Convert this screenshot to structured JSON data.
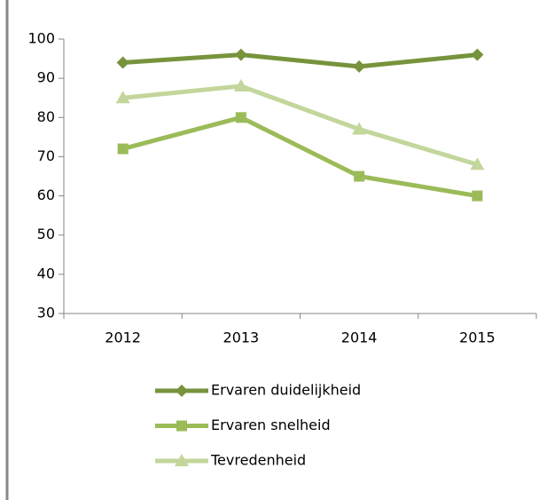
{
  "chart_data": {
    "type": "line",
    "categories": [
      "2012",
      "2013",
      "2014",
      "2015"
    ],
    "series": [
      {
        "name": "Ervaren duidelijkheid",
        "color": "#77933c",
        "marker": "diamond",
        "values": [
          94,
          96,
          93,
          96
        ]
      },
      {
        "name": "Ervaren snelheid",
        "color": "#9bbb59",
        "marker": "square",
        "values": [
          72,
          80,
          65,
          60
        ]
      },
      {
        "name": "Tevredenheid",
        "color": "#c3d69b",
        "marker": "triangle",
        "values": [
          85,
          88,
          77,
          68
        ]
      }
    ],
    "ylim": [
      30,
      100
    ],
    "yticks": [
      30,
      40,
      50,
      60,
      70,
      80,
      90,
      100
    ],
    "grid": false,
    "legend": "bottom"
  }
}
